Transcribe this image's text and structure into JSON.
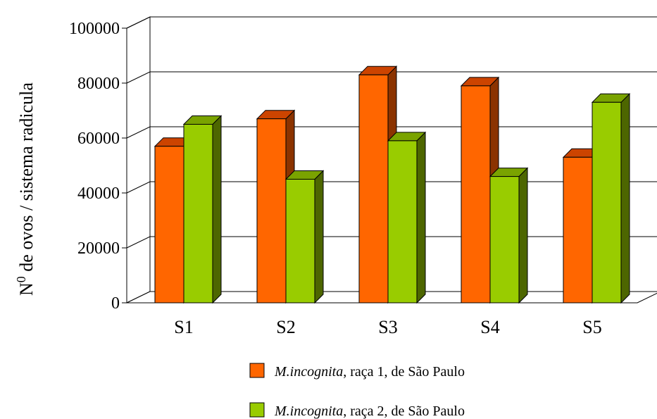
{
  "chart_data": {
    "type": "bar",
    "categories": [
      "S1",
      "S2",
      "S3",
      "S4",
      "S5"
    ],
    "series": [
      {
        "name_italic": "M.incognita",
        "name_rest": ", raça 1, de São Paulo",
        "values": [
          57000,
          67000,
          83000,
          79000,
          53000
        ],
        "color": "#ff6600",
        "side_color": "#8b3300",
        "top_color": "#cc4400"
      },
      {
        "name_italic": "M.incognita",
        "name_rest": ", raça 2, de São Paulo",
        "values": [
          65000,
          45000,
          59000,
          46000,
          73000
        ],
        "color": "#99cc00",
        "side_color": "#4d6600",
        "top_color": "#7aa300"
      }
    ],
    "ylabel_prefix": "N",
    "ylabel_sup": "0",
    "ylabel_rest": " de ovos / sistema radicula",
    "ylim": [
      0,
      100000
    ],
    "yticks": [
      "0",
      "20000",
      "40000",
      "60000",
      "80000",
      "100000"
    ],
    "grid": true,
    "legend_position": "bottom"
  }
}
